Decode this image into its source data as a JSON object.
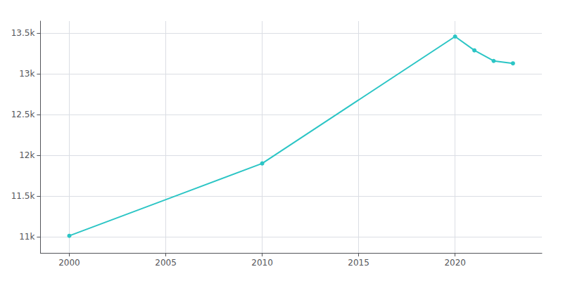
{
  "chart_data": {
    "type": "line",
    "x": [
      2000,
      2010,
      2020,
      2021,
      2022,
      2023
    ],
    "values": [
      11010,
      11900,
      13460,
      13290,
      13160,
      13130
    ],
    "color": "#2BC5C5",
    "marker": "circle",
    "xlim": [
      1998.5,
      2024.5
    ],
    "ylim": [
      10800,
      13650
    ],
    "xticks": [
      2000,
      2005,
      2010,
      2015,
      2020
    ],
    "yticks": [
      {
        "value": 11000,
        "label": "11k"
      },
      {
        "value": 11500,
        "label": "11.5k"
      },
      {
        "value": 12000,
        "label": "12k"
      },
      {
        "value": 12500,
        "label": "12.5k"
      },
      {
        "value": 13000,
        "label": "13k"
      },
      {
        "value": 13500,
        "label": "13.5k"
      }
    ],
    "grid": true
  }
}
